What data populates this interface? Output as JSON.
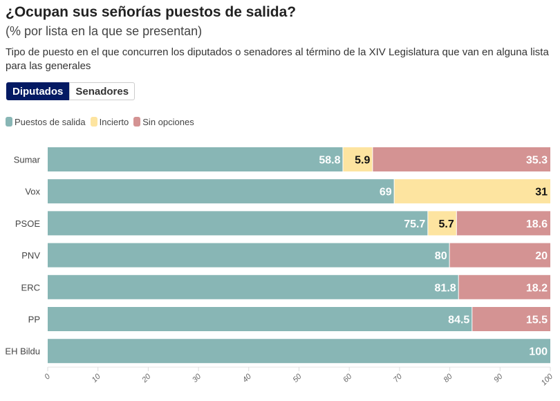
{
  "header": {
    "title": "¿Ocupan sus señorías puestos de salida?",
    "subtitle": "(% por lista en la que se presentan)",
    "description": "Tipo de puesto en el que concurren los diputados o senadores al término de la XIV Legislatura que van en alguna lista para las generales"
  },
  "tabs": [
    {
      "label": "Diputados",
      "active": true
    },
    {
      "label": "Senadores",
      "active": false
    }
  ],
  "chart_data": {
    "type": "bar",
    "orientation": "horizontal",
    "stacked": true,
    "categories": [
      "Sumar",
      "Vox",
      "PSOE",
      "PNV",
      "ERC",
      "PP",
      "EH Bildu"
    ],
    "series": [
      {
        "name": "Puestos de salida",
        "color": "#88b6b5",
        "values": [
          58.8,
          69,
          75.7,
          80,
          81.8,
          84.5,
          100
        ]
      },
      {
        "name": "Incierto",
        "color": "#fde4a0",
        "values": [
          5.9,
          31,
          5.7,
          0,
          0,
          0,
          0
        ]
      },
      {
        "name": "Sin opciones",
        "color": "#d49393",
        "values": [
          35.3,
          0,
          18.6,
          20,
          18.2,
          15.5,
          0
        ]
      }
    ],
    "xlim": [
      0,
      100
    ],
    "xticks": [
      "0",
      "10",
      "20",
      "30",
      "40",
      "50",
      "60",
      "70",
      "80",
      "90",
      "100"
    ],
    "legend": "top-left",
    "grid": false
  }
}
